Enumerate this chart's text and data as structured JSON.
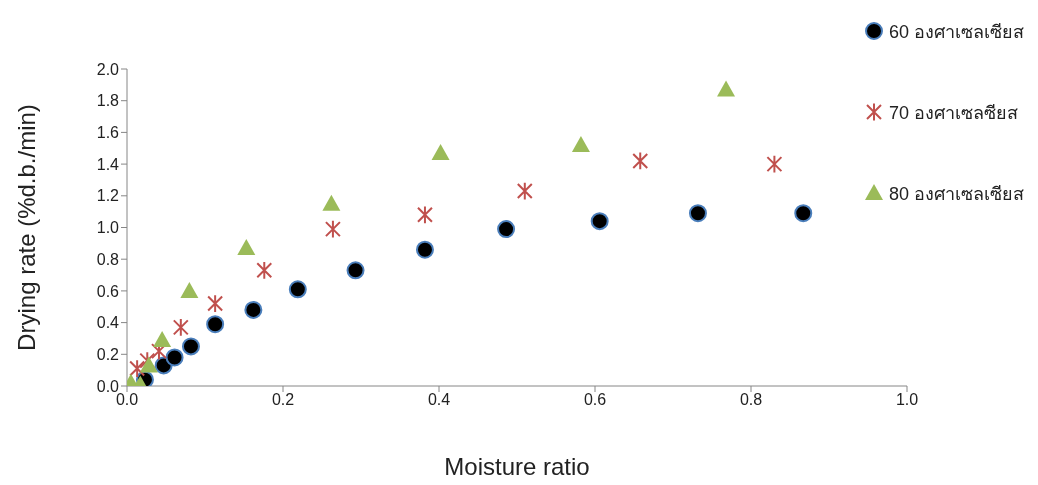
{
  "chart_data": {
    "type": "scatter",
    "xlabel": "Moisture ratio",
    "ylabel": "Drying rate (%d.b./min)",
    "xlim": [
      0,
      1
    ],
    "xticks": [
      {
        "value": 0,
        "label": "0.0"
      },
      {
        "value": 0.2,
        "label": "0.2"
      },
      {
        "value": 0.4,
        "label": "0.4"
      },
      {
        "value": 0.6,
        "label": "0.6"
      },
      {
        "value": 0.8,
        "label": "0.8"
      },
      {
        "value": 1,
        "label": "1.0"
      }
    ],
    "ylim": [
      0,
      2
    ],
    "yticks": [
      {
        "value": 0,
        "label": "0.0"
      },
      {
        "value": 0.2,
        "label": "0.2"
      },
      {
        "value": 0.4,
        "label": "0.4"
      },
      {
        "value": 0.6,
        "label": "0.6"
      },
      {
        "value": 0.8,
        "label": "0.8"
      },
      {
        "value": 1,
        "label": "1.0"
      },
      {
        "value": 1.2,
        "label": "1.2"
      },
      {
        "value": 1.4,
        "label": "1.4"
      },
      {
        "value": 1.6,
        "label": "1.6"
      },
      {
        "value": 1.8,
        "label": "1.8"
      },
      {
        "value": 2,
        "label": "2.0"
      }
    ],
    "grid": false,
    "legend": "top right",
    "series": [
      {
        "name": "60 องศาเซลเซียส",
        "color": "#000000",
        "marker": "circle",
        "x": [
          0.023,
          0.047,
          0.061,
          0.082,
          0.113,
          0.162,
          0.219,
          0.293,
          0.382,
          0.486,
          0.606,
          0.732,
          0.867
        ],
        "values": [
          0.04,
          0.13,
          0.18,
          0.25,
          0.39,
          0.48,
          0.61,
          0.73,
          0.86,
          0.99,
          1.04,
          1.09,
          1.09
        ]
      },
      {
        "name": "70 องศาเซลซียส",
        "color": "#c0504d",
        "marker": "cross",
        "x": [
          0.013,
          0.026,
          0.041,
          0.069,
          0.113,
          0.176,
          0.264,
          0.382,
          0.51,
          0.658,
          0.83
        ],
        "values": [
          0.11,
          0.16,
          0.22,
          0.37,
          0.52,
          0.73,
          0.99,
          1.08,
          1.23,
          1.42,
          1.4
        ]
      },
      {
        "name": "80 องศาเซลเซียส",
        "color": "#9bbb59",
        "marker": "triangle",
        "x": [
          0.005,
          0.017,
          0.028,
          0.045,
          0.08,
          0.153,
          0.262,
          0.402,
          0.582,
          0.768
        ],
        "values": [
          0.02,
          0.01,
          0.13,
          0.29,
          0.6,
          0.87,
          1.15,
          1.47,
          1.52,
          1.87
        ]
      }
    ]
  }
}
